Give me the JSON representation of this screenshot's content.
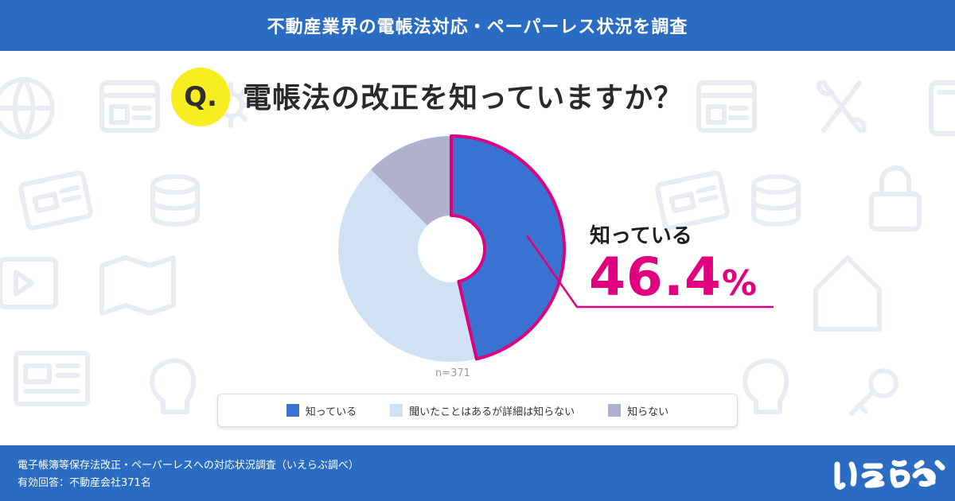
{
  "header": {
    "title": "不動産業界の電帳法対応・ペーパーレス状況を調査"
  },
  "question": {
    "badge": "Q.",
    "text": "電帳法の改正を知っていますか？"
  },
  "highlight": {
    "label": "知っている",
    "value": "46.4",
    "unit": "%"
  },
  "sample": {
    "label": "n=371"
  },
  "footer": {
    "line1": "電子帳簿等保存法改正・ペーパーレスへの対応状況調査（いえらぶ調べ）",
    "line2": "有効回答：不動産会社371名",
    "logo_text": "いえらぶ"
  },
  "colors": {
    "header": "#2a6cc2",
    "accent": "#e0007f",
    "badge": "#f7ee21"
  },
  "chart_data": {
    "type": "pie",
    "variant": "donut",
    "categories": [
      "知っている",
      "聞いたことはあるが詳細は知らない",
      "知らない"
    ],
    "values": [
      46.4,
      41.0,
      12.6
    ],
    "colors": [
      "#3a72d1",
      "#cfe1f3",
      "#b0b1cc"
    ],
    "highlighted": 0,
    "legend_position": "bottom"
  }
}
